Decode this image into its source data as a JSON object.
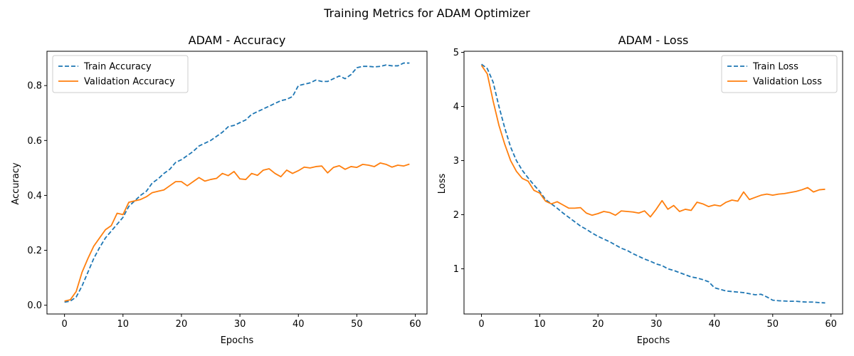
{
  "figure": {
    "suptitle": "Training Metrics for ADAM Optimizer"
  },
  "chart_data": [
    {
      "type": "line",
      "title": "ADAM - Accuracy",
      "xlabel": "Epochs",
      "ylabel": "Accuracy",
      "xlim": [
        -3,
        62
      ],
      "ylim": [
        -0.032,
        0.925
      ],
      "xticks": [
        0,
        10,
        20,
        30,
        40,
        50,
        60
      ],
      "yticks": [
        0.0,
        0.2,
        0.4,
        0.6,
        0.8
      ],
      "ytick_labels": [
        "0.0",
        "0.2",
        "0.4",
        "0.6",
        "0.8"
      ],
      "legend_position": "upper-left",
      "series": [
        {
          "name": "Train Accuracy",
          "color": "#1f77b4",
          "style": "dashed",
          "values": [
            0.011,
            0.015,
            0.03,
            0.07,
            0.12,
            0.17,
            0.21,
            0.245,
            0.27,
            0.295,
            0.32,
            0.36,
            0.38,
            0.4,
            0.415,
            0.445,
            0.46,
            0.48,
            0.495,
            0.52,
            0.53,
            0.545,
            0.56,
            0.58,
            0.59,
            0.6,
            0.615,
            0.63,
            0.65,
            0.655,
            0.665,
            0.675,
            0.695,
            0.705,
            0.715,
            0.725,
            0.735,
            0.745,
            0.75,
            0.76,
            0.8,
            0.805,
            0.81,
            0.82,
            0.815,
            0.815,
            0.825,
            0.835,
            0.825,
            0.84,
            0.865,
            0.87,
            0.87,
            0.868,
            0.87,
            0.875,
            0.872,
            0.872,
            0.882,
            0.882
          ]
        },
        {
          "name": "Validation Accuracy",
          "color": "#ff7f0e",
          "style": "solid",
          "values": [
            0.015,
            0.02,
            0.05,
            0.12,
            0.17,
            0.215,
            0.245,
            0.275,
            0.29,
            0.335,
            0.33,
            0.375,
            0.38,
            0.385,
            0.395,
            0.41,
            0.415,
            0.42,
            0.435,
            0.45,
            0.45,
            0.435,
            0.45,
            0.465,
            0.452,
            0.458,
            0.462,
            0.48,
            0.472,
            0.487,
            0.46,
            0.458,
            0.48,
            0.473,
            0.492,
            0.497,
            0.48,
            0.468,
            0.492,
            0.48,
            0.49,
            0.503,
            0.5,
            0.505,
            0.507,
            0.482,
            0.502,
            0.508,
            0.495,
            0.505,
            0.502,
            0.513,
            0.51,
            0.505,
            0.518,
            0.513,
            0.503,
            0.51,
            0.507,
            0.514
          ]
        }
      ]
    },
    {
      "type": "line",
      "title": "ADAM - Loss",
      "xlabel": "Epochs",
      "ylabel": "Loss",
      "xlim": [
        -3,
        62
      ],
      "ylim": [
        0.165,
        5.02
      ],
      "xticks": [
        0,
        10,
        20,
        30,
        40,
        50,
        60
      ],
      "yticks": [
        1,
        2,
        3,
        4,
        5
      ],
      "ytick_labels": [
        "1",
        "2",
        "3",
        "4",
        "5"
      ],
      "legend_position": "upper-right",
      "series": [
        {
          "name": "Train Loss",
          "color": "#1f77b4",
          "style": "dashed",
          "values": [
            4.78,
            4.7,
            4.45,
            4.0,
            3.6,
            3.25,
            3.0,
            2.82,
            2.68,
            2.55,
            2.43,
            2.28,
            2.2,
            2.12,
            2.03,
            1.95,
            1.87,
            1.79,
            1.73,
            1.66,
            1.6,
            1.55,
            1.5,
            1.44,
            1.38,
            1.34,
            1.28,
            1.23,
            1.18,
            1.14,
            1.09,
            1.06,
            1.0,
            0.97,
            0.93,
            0.89,
            0.85,
            0.83,
            0.8,
            0.76,
            0.65,
            0.62,
            0.59,
            0.58,
            0.57,
            0.56,
            0.54,
            0.52,
            0.53,
            0.48,
            0.42,
            0.41,
            0.405,
            0.4,
            0.4,
            0.39,
            0.385,
            0.385,
            0.375,
            0.37
          ]
        },
        {
          "name": "Validation Loss",
          "color": "#ff7f0e",
          "style": "solid",
          "values": [
            4.76,
            4.6,
            4.1,
            3.65,
            3.3,
            3.0,
            2.8,
            2.67,
            2.62,
            2.45,
            2.4,
            2.25,
            2.2,
            2.24,
            2.18,
            2.12,
            2.12,
            2.13,
            2.03,
            1.99,
            2.02,
            2.06,
            2.04,
            1.99,
            2.07,
            2.06,
            2.05,
            2.03,
            2.07,
            1.96,
            2.1,
            2.26,
            2.1,
            2.17,
            2.06,
            2.1,
            2.08,
            2.23,
            2.2,
            2.15,
            2.18,
            2.16,
            2.23,
            2.27,
            2.25,
            2.42,
            2.28,
            2.32,
            2.36,
            2.38,
            2.36,
            2.38,
            2.39,
            2.41,
            2.43,
            2.46,
            2.5,
            2.42,
            2.46,
            2.47
          ]
        }
      ]
    }
  ]
}
